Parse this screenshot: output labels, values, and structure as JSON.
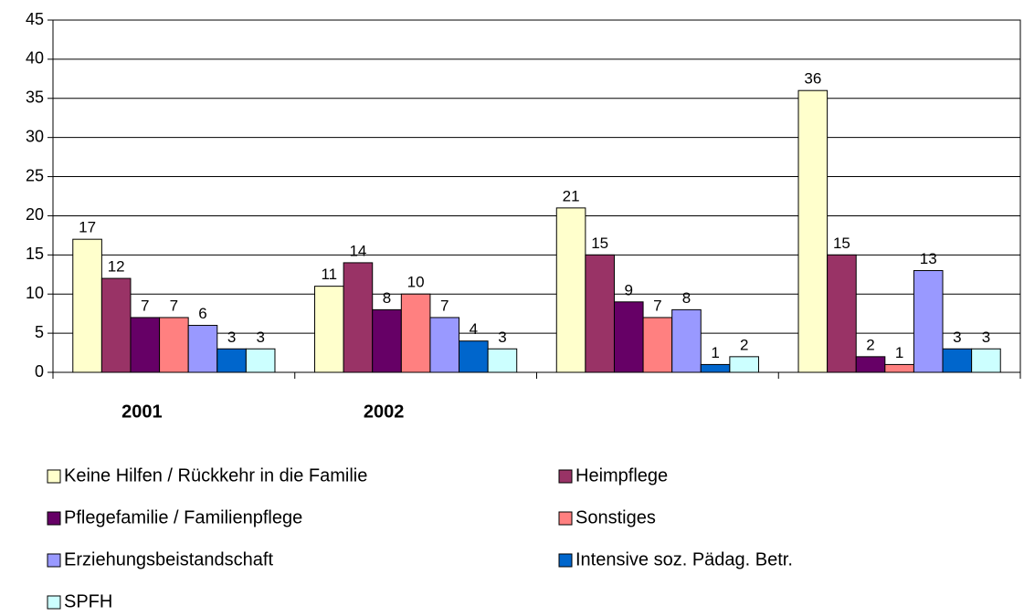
{
  "chart_data": {
    "type": "bar",
    "categories": [
      "2001",
      "2002",
      null,
      null
    ],
    "series": [
      {
        "name": "Keine Hilfen / Rückkehr in die Familie",
        "color": "#ffffcc",
        "values": [
          17,
          11,
          21,
          36
        ]
      },
      {
        "name": "Heimpflege",
        "color": "#993366",
        "values": [
          12,
          14,
          15,
          15
        ]
      },
      {
        "name": "Pflegefamilie / Familienpflege",
        "color": "#660066",
        "values": [
          7,
          8,
          9,
          2
        ]
      },
      {
        "name": "Sonstiges",
        "color": "#ff8080",
        "values": [
          7,
          10,
          7,
          1
        ]
      },
      {
        "name": "Erziehungsbeistandschaft",
        "color": "#9999ff",
        "values": [
          6,
          7,
          8,
          13
        ]
      },
      {
        "name": "Intensive soz. Pädag. Betr.",
        "color": "#0066cc",
        "values": [
          3,
          4,
          1,
          3
        ]
      },
      {
        "name": "SPFH",
        "color": "#ccffff",
        "values": [
          3,
          3,
          2,
          3
        ]
      }
    ],
    "ylim": [
      0,
      45
    ],
    "yticks": [
      0,
      5,
      10,
      15,
      20,
      25,
      30,
      35,
      40,
      45
    ],
    "grid": true,
    "legend": "bottom"
  }
}
